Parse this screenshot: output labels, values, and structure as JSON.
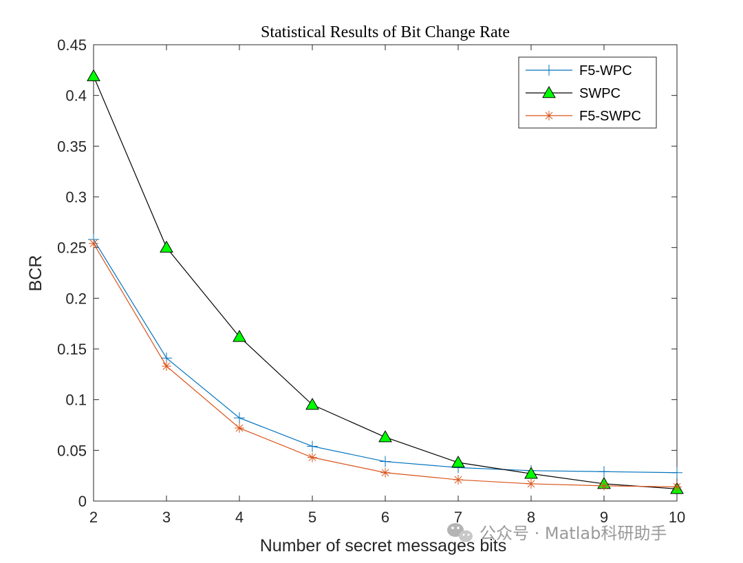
{
  "chart_data": {
    "type": "line",
    "title": "Statistical Results of Bit Change Rate",
    "xlabel": "Number of secret messages bits",
    "ylabel": "BCR",
    "x": [
      2,
      3,
      4,
      5,
      6,
      7,
      8,
      9,
      10
    ],
    "xlim": [
      2,
      10
    ],
    "ylim": [
      0,
      0.45
    ],
    "xticks": [
      "2",
      "3",
      "4",
      "5",
      "6",
      "7",
      "8",
      "9",
      "10"
    ],
    "yticks": [
      "0",
      "0.05",
      "0.1",
      "0.15",
      "0.2",
      "0.25",
      "0.3",
      "0.35",
      "0.4",
      "0.45"
    ],
    "grid": false,
    "legend_position": "top-right",
    "series": [
      {
        "name": "F5-WPC",
        "color": "#0072BD",
        "marker": "plus",
        "values": [
          0.258,
          0.141,
          0.082,
          0.054,
          0.039,
          0.033,
          0.03,
          0.029,
          0.028
        ]
      },
      {
        "name": "SWPC",
        "color": "#000000",
        "marker": "triangle",
        "marker_fill": "#00FF00",
        "values": [
          0.419,
          0.25,
          0.162,
          0.095,
          0.063,
          0.038,
          0.027,
          0.017,
          0.012
        ]
      },
      {
        "name": "F5-SWPC",
        "color": "#D95319",
        "marker": "asterisk",
        "values": [
          0.254,
          0.133,
          0.072,
          0.043,
          0.028,
          0.021,
          0.017,
          0.015,
          0.014
        ]
      }
    ]
  },
  "watermark": {
    "text": "公众号 · Matlab科研助手",
    "icon": "wechat-icon"
  }
}
